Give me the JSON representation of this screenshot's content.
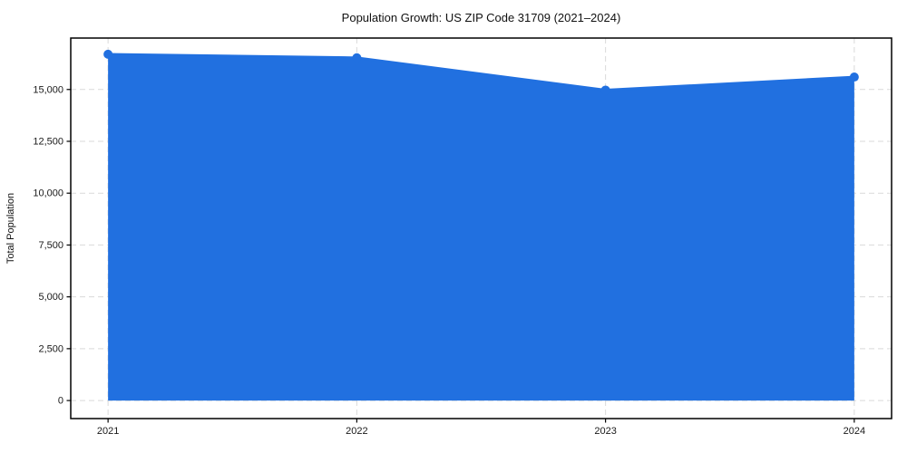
{
  "chart_data": {
    "type": "area",
    "title": "Population Growth: US ZIP Code 31709 (2021–2024)",
    "xlabel": "",
    "ylabel": "Total Population",
    "x": [
      2021,
      2022,
      2023,
      2024
    ],
    "x_tick_labels": [
      "2021",
      "2022",
      "2023",
      "2024"
    ],
    "series": [
      {
        "name": "Total Population",
        "values": [
          16700,
          16530,
          14970,
          15600
        ]
      }
    ],
    "yticks": [
      0,
      2500,
      5000,
      7500,
      10000,
      12500,
      15000
    ],
    "ytick_labels": [
      "0",
      "2,500",
      "5,000",
      "7,500",
      "10,000",
      "12,500",
      "15,000"
    ],
    "xlim": [
      2020.85,
      2024.15
    ],
    "ylim": [
      -870,
      17480
    ],
    "grid": true,
    "grid_style": "dashed",
    "legend_position": "none",
    "colors": {
      "line": "#2170e0",
      "marker": "#2170e0",
      "fill": "#2170e0",
      "fill_opacity": 0.1,
      "gridline": "#d9d9d9",
      "spine": "#000000",
      "tick_text": "#1a1a1a",
      "title_text": "#111111"
    },
    "marker": "circle",
    "fill_to": 0
  }
}
